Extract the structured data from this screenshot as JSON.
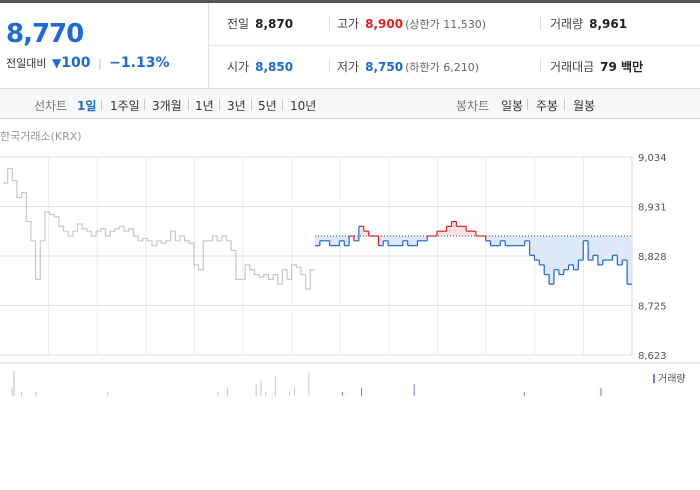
{
  "quote": {
    "price": "8,770",
    "change_label": "전일대비",
    "change_value": "100",
    "change_pct": "−1.13%"
  },
  "stats": {
    "prev_close_label": "전일",
    "prev_close": "8,870",
    "high_label": "고가",
    "high": "8,900",
    "upper_limit": "(상한가 11,530)",
    "volume_label": "거래량",
    "volume": "8,961",
    "open_label": "시가",
    "open": "8,850",
    "low_label": "저가",
    "low": "8,750",
    "lower_limit": "(하한가 6,210)",
    "value_label": "거래대금",
    "value": "79 백만"
  },
  "line_chart_tabs": {
    "label": "선차트",
    "items": [
      "1일",
      "1주일",
      "3개월",
      "1년",
      "3년",
      "5년",
      "10년"
    ],
    "active": "1일"
  },
  "candle_chart_tabs": {
    "label": "봉차트",
    "items": [
      "일봉",
      "주봉",
      "월봉"
    ]
  },
  "chart_data": {
    "type": "line",
    "source_label": "한국거래소(KRX)",
    "y_ticks": [
      "9,034",
      "8,931",
      "8,828",
      "8,725",
      "8,623"
    ],
    "ylim": [
      8623,
      9034
    ],
    "reference_price": 8870,
    "prev_day": [
      8980,
      9010,
      8985,
      8950,
      8960,
      8900,
      8860,
      8780,
      8860,
      8920,
      8915,
      8910,
      8890,
      8880,
      8870,
      8880,
      8895,
      8885,
      8880,
      8870,
      8880,
      8885,
      8870,
      8880,
      8885,
      8890,
      8880,
      8885,
      8870,
      8860,
      8865,
      8860,
      8850,
      8860,
      8855,
      8860,
      8880,
      8860,
      8870,
      8860,
      8855,
      8810,
      8800,
      8860,
      8860,
      8870,
      8860,
      8870,
      8860,
      8840,
      8780,
      8780,
      8810,
      8800,
      8790,
      8785,
      8790,
      8780,
      8790,
      8770,
      8800,
      8780,
      8810,
      8805,
      8790,
      8760,
      8800
    ],
    "today": [
      8850,
      8860,
      8860,
      8850,
      8850,
      8860,
      8850,
      8870,
      8860,
      8890,
      8880,
      8870,
      8870,
      8850,
      8860,
      8850,
      8850,
      8850,
      8860,
      8850,
      8850,
      8860,
      8860,
      8870,
      8870,
      8880,
      8880,
      8890,
      8900,
      8890,
      8890,
      8880,
      8880,
      8870,
      8870,
      8860,
      8850,
      8850,
      8860,
      8850,
      8850,
      8850,
      8850,
      8860,
      8830,
      8820,
      8810,
      8790,
      8770,
      8800,
      8790,
      8800,
      8810,
      8800,
      8820,
      8860,
      8820,
      8830,
      8810,
      8820,
      8820,
      8830,
      8810,
      8820,
      8770
    ],
    "volume_label": "거래량",
    "volume": [
      0,
      0,
      2,
      0,
      1,
      0,
      0,
      1,
      0,
      0,
      0,
      0,
      0,
      0,
      0,
      0,
      0,
      0,
      0,
      0,
      0,
      0,
      1,
      0,
      0,
      0,
      0,
      0,
      0,
      0,
      0,
      0,
      0,
      0,
      0,
      0,
      0,
      0,
      0,
      0,
      0,
      0,
      0,
      0,
      0,
      1,
      0,
      2,
      0,
      0,
      0,
      0,
      0,
      3,
      4,
      1,
      0,
      5,
      0,
      0,
      1,
      2,
      0,
      0,
      6,
      0,
      0,
      0,
      0,
      0,
      0,
      1,
      0,
      0,
      0,
      2,
      0,
      0,
      0,
      0,
      0,
      0,
      0,
      0,
      0,
      0,
      3,
      0,
      0,
      0,
      0,
      0,
      0,
      0,
      0,
      0,
      0,
      0,
      0,
      0,
      0,
      0,
      0,
      0,
      0,
      0,
      0,
      0,
      0,
      1,
      0,
      0,
      0,
      0,
      0,
      0,
      0,
      0,
      0,
      0,
      0,
      0,
      0,
      0,
      0,
      2,
      0,
      0,
      0,
      0,
      0,
      0
    ]
  },
  "colors": {
    "up": "#e0211f",
    "down": "#1b6ad6",
    "prev": "#c8c8c8"
  }
}
